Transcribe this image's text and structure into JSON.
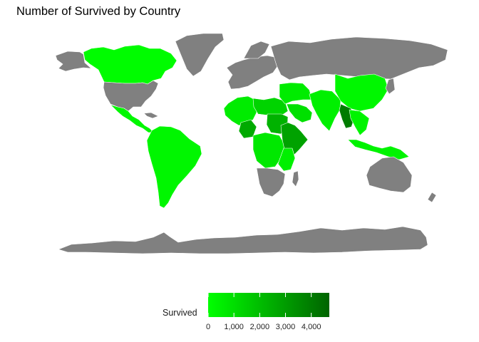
{
  "title": "Number of Survived by Country",
  "colors": {
    "no_data": "#808080",
    "scale_low": "#00ff00",
    "scale_high": "#006400",
    "border": "#ffffff"
  },
  "legend": {
    "title": "Survived",
    "min": 0,
    "max": 4700,
    "ticks": [
      {
        "value": 0,
        "label": "0"
      },
      {
        "value": 1000,
        "label": "1,000"
      },
      {
        "value": 2000,
        "label": "2,000"
      },
      {
        "value": 3000,
        "label": "3,000"
      },
      {
        "value": 4000,
        "label": "4,000"
      }
    ]
  },
  "map_data": {
    "type": "choropleth",
    "variable": "Survived",
    "fill_levels": {
      "canada": 0.02,
      "mexico_central_america": 0.05,
      "south_america": 0.06,
      "west_africa": 0.12,
      "north_east_africa": 0.28,
      "sudan": 0.5,
      "nigeria": 0.55,
      "horn_of_africa": 0.6,
      "central_africa": 0.15,
      "east_africa": 0.1,
      "southern_africa_north": 0.08,
      "middle_east": 0.12,
      "arabia": 0.2,
      "south_asia": 0.1,
      "china": 0.05,
      "myanmar": 0.85,
      "south_east_asia": 0.07,
      "indonesia_png": 0.08
    },
    "no_data_regions": [
      "usa",
      "greenland",
      "russia",
      "europe",
      "australia",
      "antarctica",
      "southern_africa"
    ]
  }
}
